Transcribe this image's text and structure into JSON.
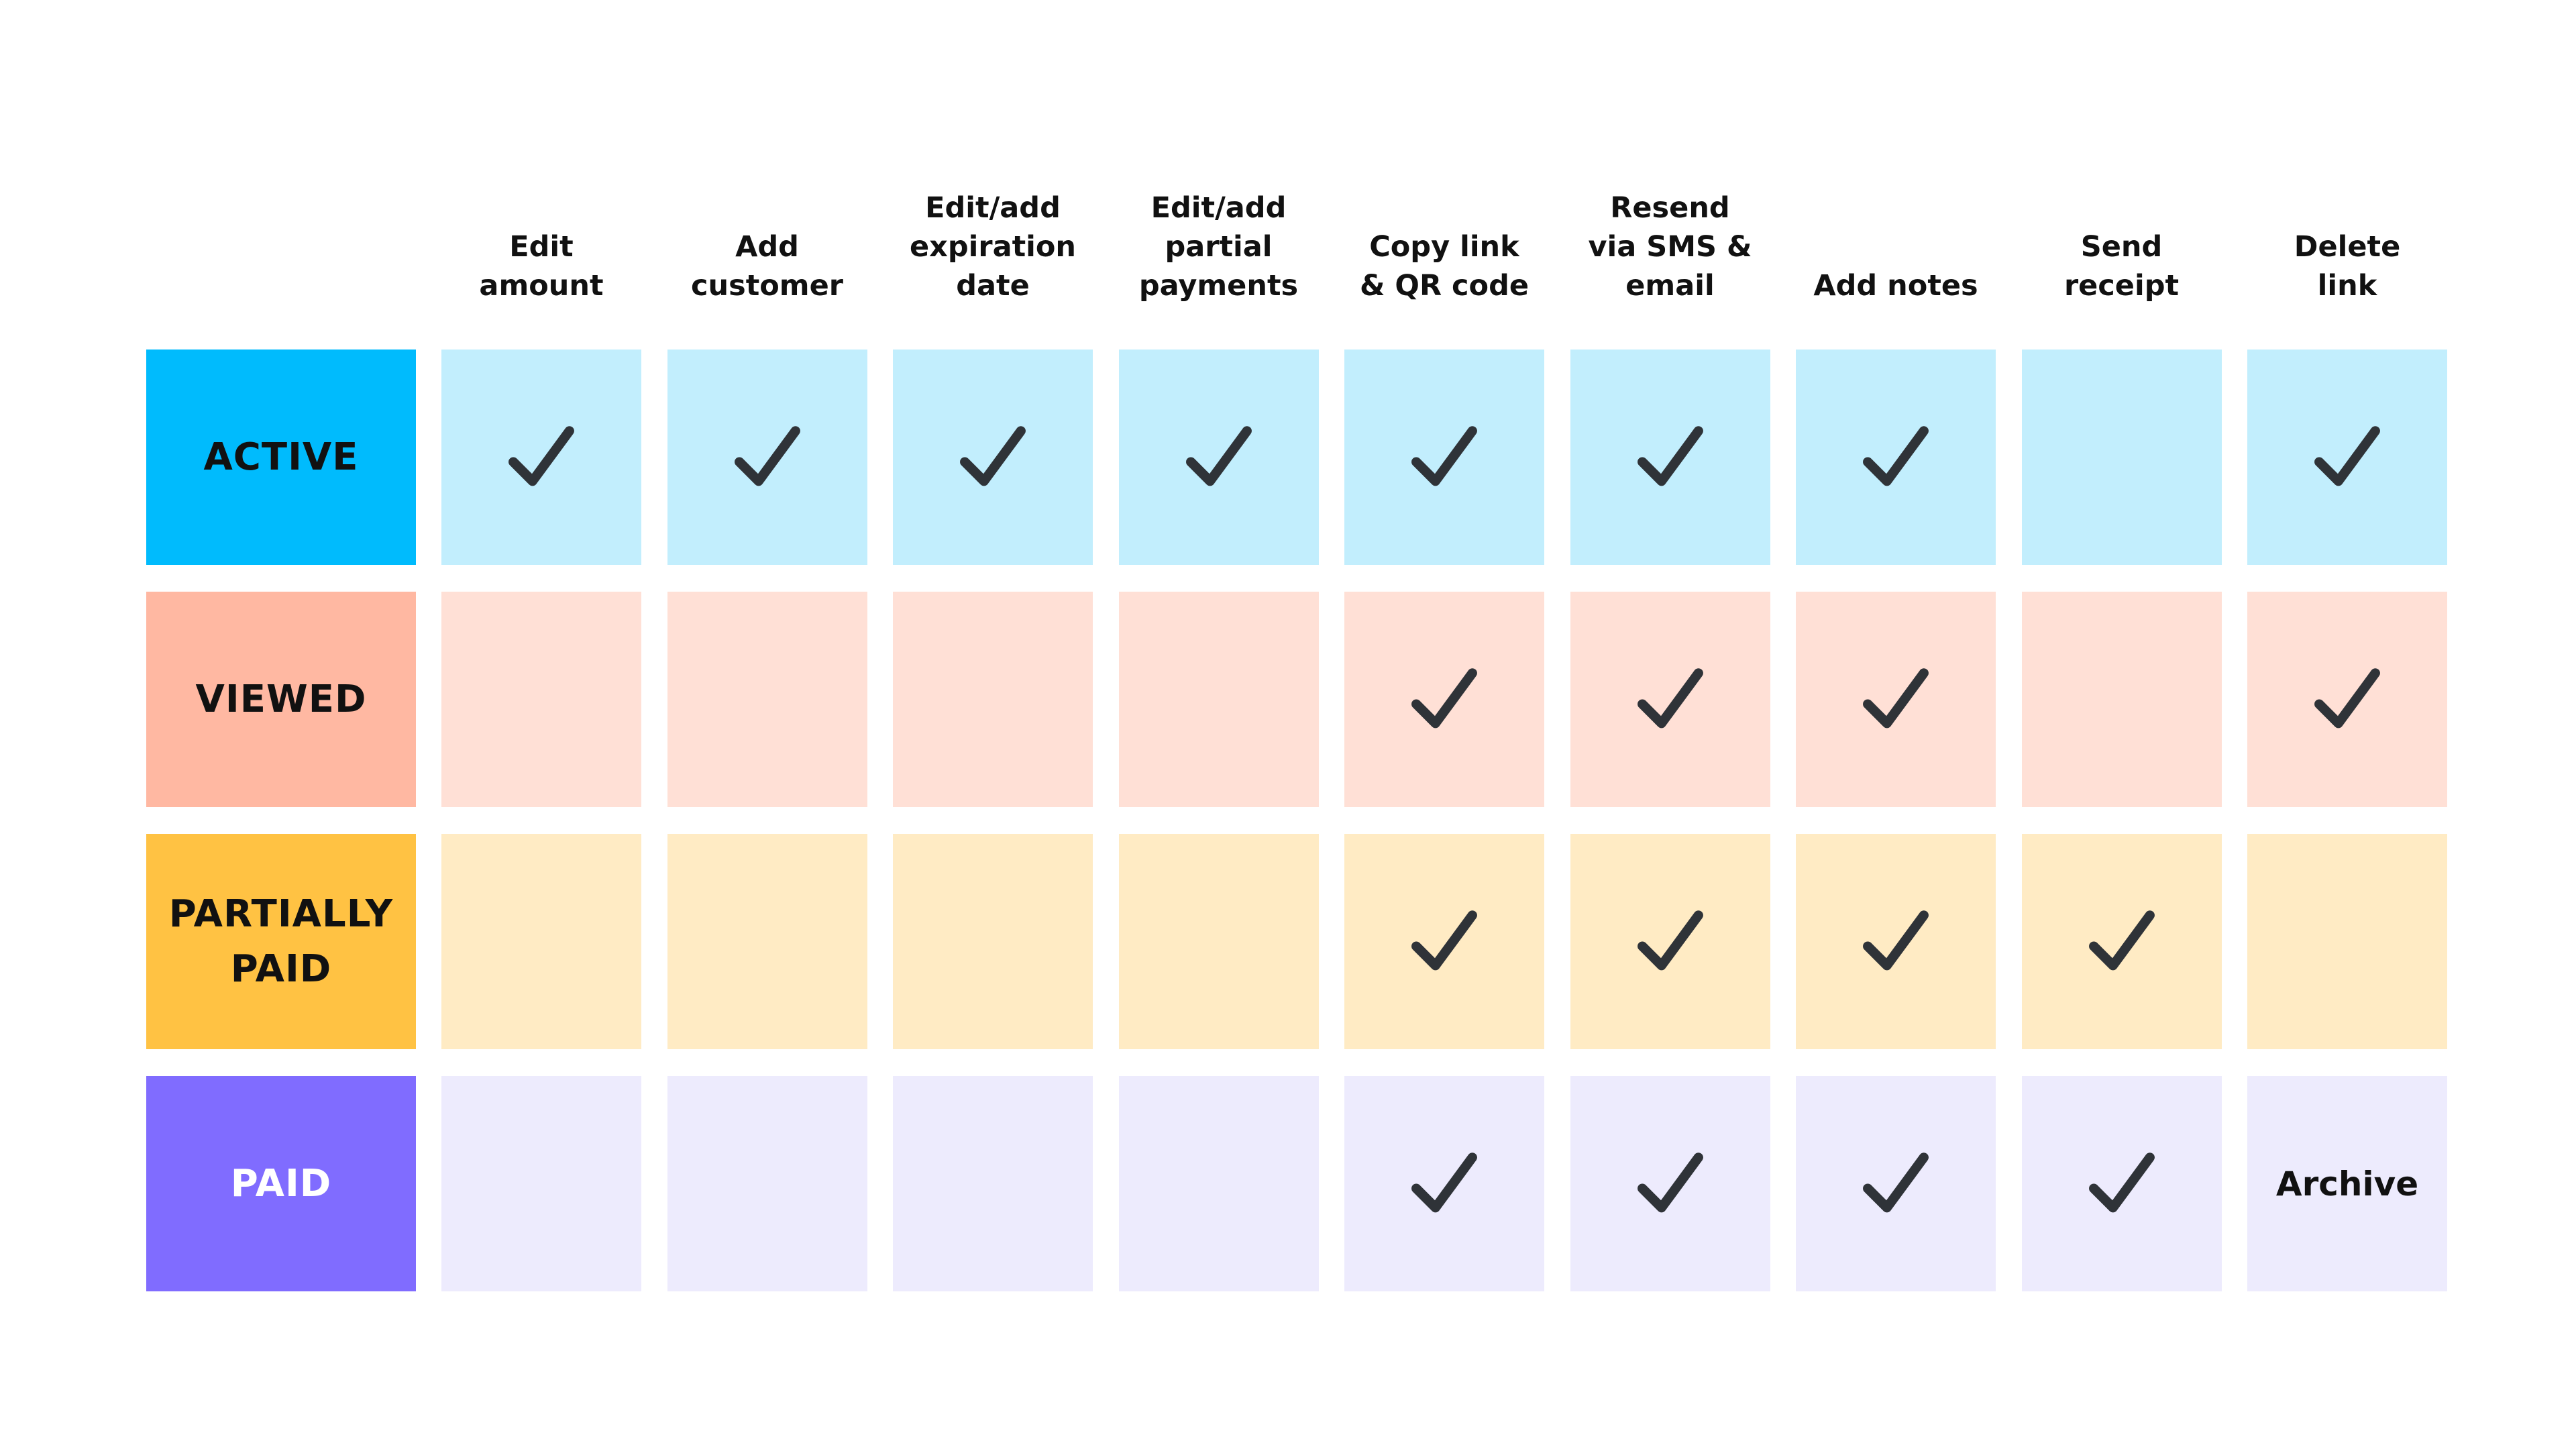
{
  "columns": [
    {
      "id": "edit-amount",
      "label": "Edit\namount"
    },
    {
      "id": "add-customer",
      "label": "Add\ncustomer"
    },
    {
      "id": "edit-expiration",
      "label": "Edit/add\nexpiration\ndate"
    },
    {
      "id": "edit-partial",
      "label": "Edit/add\npartial\npayments"
    },
    {
      "id": "copy-link",
      "label": "Copy link\n& QR code"
    },
    {
      "id": "resend",
      "label": "Resend\nvia SMS &\nemail"
    },
    {
      "id": "add-notes",
      "label": "Add notes"
    },
    {
      "id": "send-receipt",
      "label": "Send\nreceipt"
    },
    {
      "id": "delete-link",
      "label": "Delete\nlink"
    }
  ],
  "rows": [
    {
      "id": "active",
      "label": "ACTIVE",
      "label_color": "#00bbfd",
      "label_text_color": "#111111",
      "cell_color": "#c2eefd",
      "cells": [
        "check",
        "check",
        "check",
        "check",
        "check",
        "check",
        "check",
        "",
        "check"
      ]
    },
    {
      "id": "viewed",
      "label": "VIEWED",
      "label_color": "#ffb8a2",
      "label_text_color": "#111111",
      "cell_color": "#ffe0d6",
      "cells": [
        "",
        "",
        "",
        "",
        "check",
        "check",
        "check",
        "",
        "check"
      ]
    },
    {
      "id": "partially-paid",
      "label": "PARTIALLY\nPAID",
      "label_color": "#ffc243",
      "label_text_color": "#111111",
      "cell_color": "#ffebc4",
      "cells": [
        "",
        "",
        "",
        "",
        "check",
        "check",
        "check",
        "check",
        ""
      ]
    },
    {
      "id": "paid",
      "label": "PAID",
      "label_color": "#806cff",
      "label_text_color": "#ffffff",
      "cell_color": "#edebfd",
      "cells": [
        "",
        "",
        "",
        "",
        "check",
        "check",
        "check",
        "check",
        "Archive"
      ]
    }
  ],
  "check_color": "#2f3338",
  "check_icon": "checkmark-icon"
}
